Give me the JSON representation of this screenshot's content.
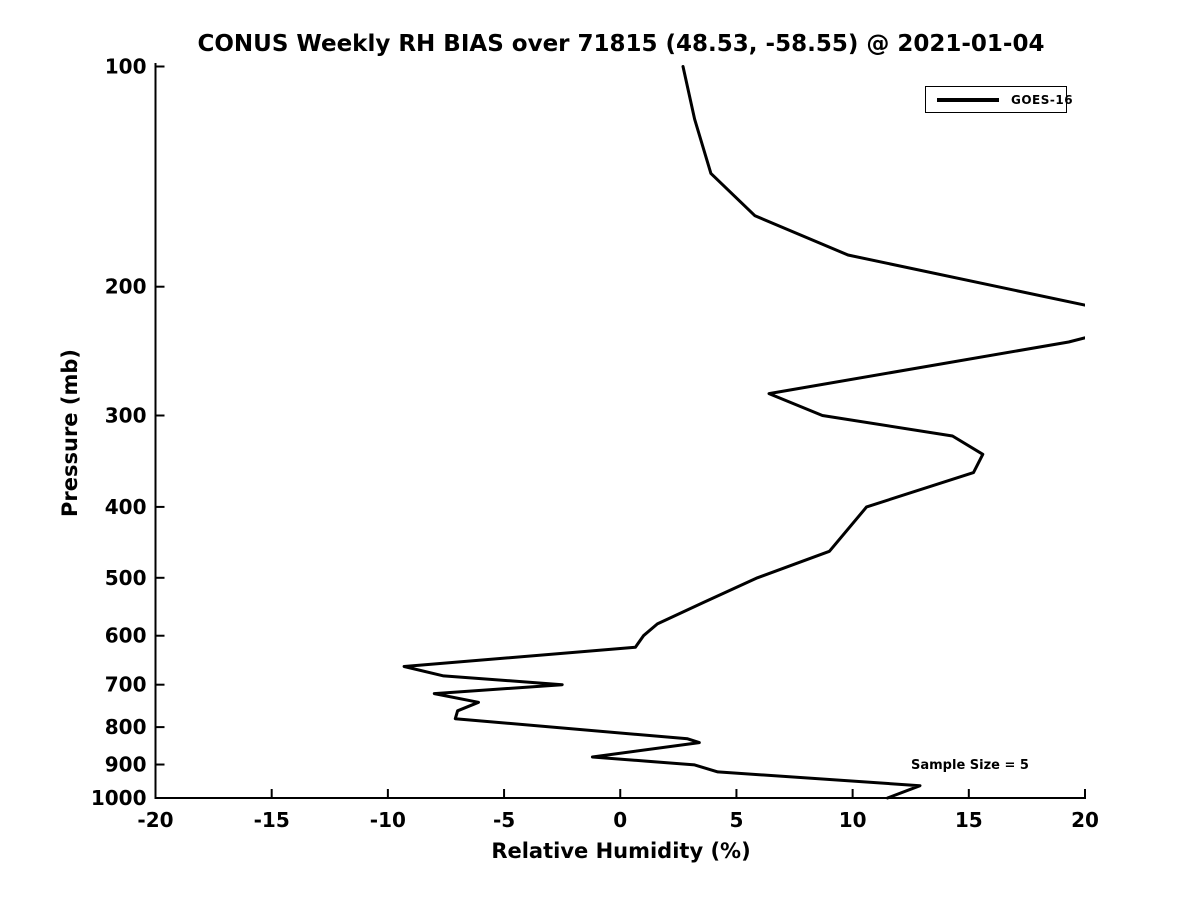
{
  "chart_data": {
    "type": "line",
    "title": "CONUS Weekly RH BIAS over 71815 (48.53, -58.55) @ 2021-01-04",
    "xlabel": "Relative Humidity (%)",
    "ylabel": "Pressure (mb)",
    "xlim": [
      -20,
      20
    ],
    "ylim": [
      100,
      1000
    ],
    "y_scale": "log",
    "y_inverted": true,
    "grid": false,
    "x_ticks": [
      -20,
      -15,
      -10,
      -5,
      0,
      5,
      10,
      15,
      20
    ],
    "y_ticks": [
      100,
      200,
      300,
      400,
      500,
      600,
      700,
      800,
      900,
      1000
    ],
    "line_color": "#000000",
    "legend_position": "upper right",
    "annotation": "Sample Size = 5",
    "series": [
      {
        "name": "GOES-16",
        "points_format": "[rh_bias_percent, pressure_mb]",
        "points": [
          [
            2.7,
            100
          ],
          [
            3.2,
            118
          ],
          [
            3.9,
            140
          ],
          [
            5.8,
            160
          ],
          [
            9.8,
            181
          ],
          [
            23.0,
            222
          ],
          [
            19.3,
            238
          ],
          [
            6.4,
            280
          ],
          [
            8.7,
            300
          ],
          [
            14.3,
            320
          ],
          [
            15.6,
            339
          ],
          [
            15.2,
            359
          ],
          [
            10.6,
            400
          ],
          [
            9.0,
            460
          ],
          [
            5.9,
            500
          ],
          [
            3.6,
            540
          ],
          [
            1.6,
            578
          ],
          [
            1.0,
            600
          ],
          [
            0.65,
            622
          ],
          [
            -9.3,
            661
          ],
          [
            -7.6,
            681
          ],
          [
            -2.5,
            700
          ],
          [
            -8.0,
            720
          ],
          [
            -6.1,
            740
          ],
          [
            -7.0,
            760
          ],
          [
            -7.1,
            779
          ],
          [
            2.9,
            830
          ],
          [
            3.4,
            840
          ],
          [
            -1.2,
            879
          ],
          [
            3.2,
            901
          ],
          [
            4.2,
            921
          ],
          [
            12.9,
            962
          ],
          [
            11.5,
            1000
          ]
        ]
      }
    ]
  }
}
